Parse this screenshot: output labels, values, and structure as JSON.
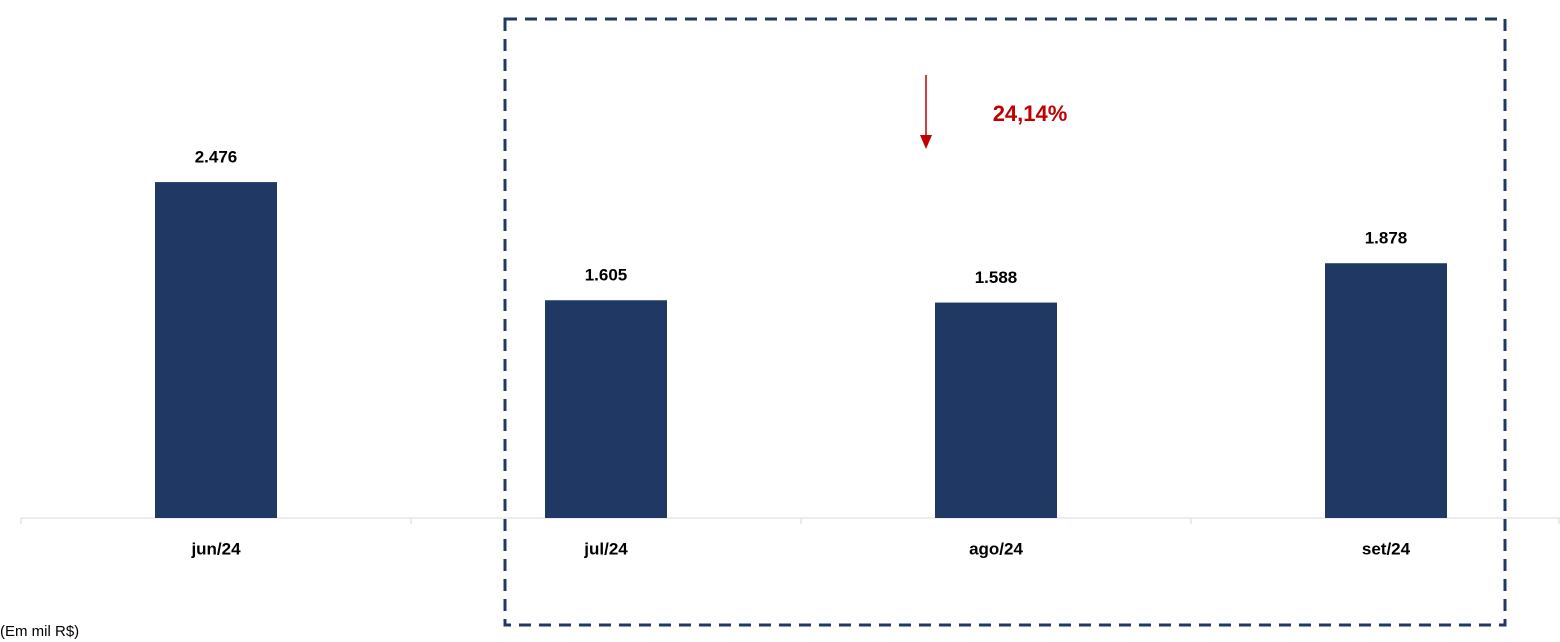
{
  "chart_data": {
    "type": "bar",
    "categories": [
      "jun/24",
      "jul/24",
      "ago/24",
      "set/24"
    ],
    "values": [
      2476,
      1605,
      1588,
      1878
    ],
    "value_labels": [
      "2.476",
      "1.605",
      "1.588",
      "1.878"
    ],
    "color": "#203864",
    "ylim": [
      0,
      3000
    ],
    "grid": false,
    "annotation": "24,14%",
    "annotation_color": "#c00000",
    "unit_note": "(Em mil R$)"
  }
}
